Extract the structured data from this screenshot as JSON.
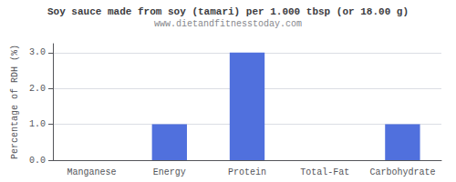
{
  "chart_data": {
    "type": "bar",
    "title": "Soy sauce made from soy (tamari) per 1.000 tbsp (or 18.00 g)",
    "subtitle": "www.dietandfitnesstoday.com",
    "categories": [
      "Manganese",
      "Energy",
      "Protein",
      "Total-Fat",
      "Carbohydrate"
    ],
    "values": [
      0.0,
      1.0,
      3.0,
      0.0,
      1.0
    ],
    "ylabel": "Percentage of RDH (%)",
    "ylim": [
      0,
      3.25
    ],
    "yticks": [
      {
        "value": 0,
        "label": "0.0"
      },
      {
        "value": 1,
        "label": "1.0"
      },
      {
        "value": 2,
        "label": "2.0"
      },
      {
        "value": 3,
        "label": "3.0"
      }
    ],
    "grid": true
  }
}
